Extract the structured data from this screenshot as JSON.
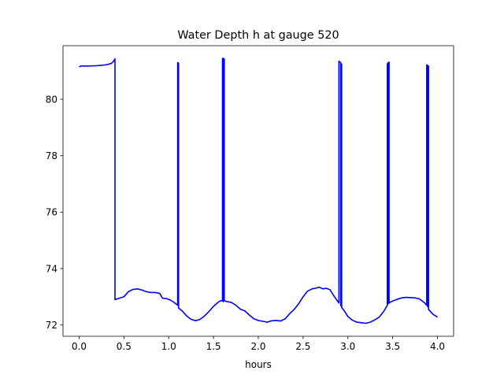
{
  "chart_data": {
    "type": "line",
    "title": "Water Depth h at gauge 520",
    "xlabel": "hours",
    "ylabel": "",
    "xlim": [
      -0.18,
      4.18
    ],
    "ylim": [
      71.6,
      81.9
    ],
    "grid": false,
    "legend": "none",
    "xticks": [
      0.0,
      0.5,
      1.0,
      1.5,
      2.0,
      2.5,
      3.0,
      3.5,
      4.0
    ],
    "xtick_labels": [
      "0.0",
      "0.5",
      "1.0",
      "1.5",
      "2.0",
      "2.5",
      "3.0",
      "3.5",
      "4.0"
    ],
    "yticks": [
      72,
      74,
      76,
      78,
      80
    ],
    "ytick_labels": [
      "72",
      "74",
      "76",
      "78",
      "80"
    ],
    "series": [
      {
        "name": "",
        "color": "#0000ff",
        "points": [
          [
            0.0,
            81.15
          ],
          [
            0.02,
            81.18
          ],
          [
            0.1,
            81.18
          ],
          [
            0.2,
            81.19
          ],
          [
            0.3,
            81.22
          ],
          [
            0.36,
            81.27
          ],
          [
            0.38,
            81.33
          ],
          [
            0.4,
            81.43
          ],
          [
            0.4,
            72.9
          ],
          [
            0.45,
            72.95
          ],
          [
            0.5,
            73.0
          ],
          [
            0.55,
            73.18
          ],
          [
            0.6,
            73.26
          ],
          [
            0.65,
            73.28
          ],
          [
            0.7,
            73.24
          ],
          [
            0.75,
            73.18
          ],
          [
            0.8,
            73.15
          ],
          [
            0.85,
            73.15
          ],
          [
            0.9,
            73.12
          ],
          [
            0.93,
            72.95
          ],
          [
            0.98,
            72.93
          ],
          [
            1.02,
            72.88
          ],
          [
            1.06,
            72.8
          ],
          [
            1.1,
            72.7
          ],
          [
            1.1,
            81.3
          ],
          [
            1.11,
            81.28
          ],
          [
            1.11,
            72.6
          ],
          [
            1.15,
            72.5
          ],
          [
            1.2,
            72.32
          ],
          [
            1.25,
            72.2
          ],
          [
            1.3,
            72.15
          ],
          [
            1.35,
            72.2
          ],
          [
            1.4,
            72.32
          ],
          [
            1.45,
            72.48
          ],
          [
            1.5,
            72.66
          ],
          [
            1.55,
            72.8
          ],
          [
            1.58,
            72.86
          ],
          [
            1.6,
            72.85
          ],
          [
            1.6,
            81.45
          ],
          [
            1.61,
            81.45
          ],
          [
            1.61,
            72.82
          ],
          [
            1.62,
            81.43
          ],
          [
            1.62,
            72.86
          ],
          [
            1.65,
            72.83
          ],
          [
            1.7,
            72.8
          ],
          [
            1.75,
            72.7
          ],
          [
            1.8,
            72.56
          ],
          [
            1.85,
            72.5
          ],
          [
            1.9,
            72.35
          ],
          [
            1.95,
            72.22
          ],
          [
            2.0,
            72.16
          ],
          [
            2.05,
            72.13
          ],
          [
            2.1,
            72.1
          ],
          [
            2.15,
            72.15
          ],
          [
            2.2,
            72.16
          ],
          [
            2.25,
            72.14
          ],
          [
            2.3,
            72.22
          ],
          [
            2.35,
            72.4
          ],
          [
            2.4,
            72.55
          ],
          [
            2.45,
            72.75
          ],
          [
            2.5,
            73.0
          ],
          [
            2.55,
            73.2
          ],
          [
            2.6,
            73.28
          ],
          [
            2.65,
            73.31
          ],
          [
            2.68,
            73.34
          ],
          [
            2.72,
            73.28
          ],
          [
            2.76,
            73.3
          ],
          [
            2.8,
            73.25
          ],
          [
            2.85,
            73.0
          ],
          [
            2.9,
            72.78
          ],
          [
            2.9,
            81.35
          ],
          [
            2.92,
            81.3
          ],
          [
            2.92,
            72.68
          ],
          [
            2.93,
            81.25
          ],
          [
            2.93,
            72.62
          ],
          [
            2.96,
            72.5
          ],
          [
            3.0,
            72.3
          ],
          [
            3.05,
            72.17
          ],
          [
            3.1,
            72.1
          ],
          [
            3.15,
            72.08
          ],
          [
            3.2,
            72.06
          ],
          [
            3.25,
            72.1
          ],
          [
            3.3,
            72.18
          ],
          [
            3.35,
            72.28
          ],
          [
            3.4,
            72.48
          ],
          [
            3.44,
            72.7
          ],
          [
            3.44,
            81.25
          ],
          [
            3.45,
            81.3
          ],
          [
            3.45,
            72.75
          ],
          [
            3.46,
            81.32
          ],
          [
            3.46,
            72.78
          ],
          [
            3.5,
            72.85
          ],
          [
            3.55,
            72.91
          ],
          [
            3.6,
            72.96
          ],
          [
            3.65,
            72.98
          ],
          [
            3.7,
            72.97
          ],
          [
            3.75,
            72.96
          ],
          [
            3.8,
            72.92
          ],
          [
            3.85,
            72.8
          ],
          [
            3.88,
            72.7
          ],
          [
            3.88,
            81.22
          ],
          [
            3.89,
            81.2
          ],
          [
            3.89,
            72.65
          ],
          [
            3.9,
            81.18
          ],
          [
            3.9,
            72.55
          ],
          [
            3.95,
            72.38
          ],
          [
            4.0,
            72.28
          ]
        ]
      }
    ]
  }
}
